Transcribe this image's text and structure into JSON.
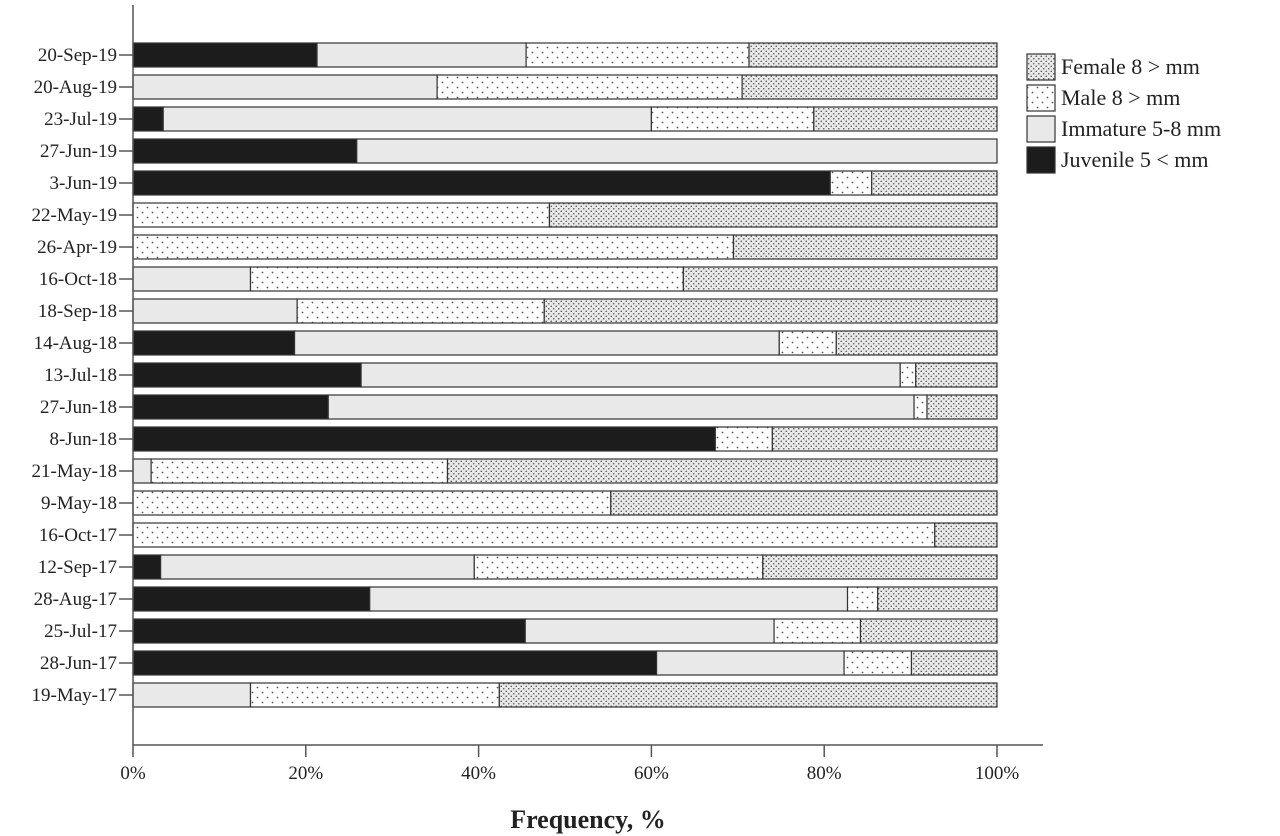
{
  "chart_data": {
    "type": "bar",
    "orientation": "horizontal",
    "stacked": true,
    "xlabel": "Frequency, %",
    "ylabel": "",
    "xlim": [
      0,
      100
    ],
    "x_ticks": [
      "0%",
      "20%",
      "40%",
      "60%",
      "80%",
      "100%"
    ],
    "legend_position": "top-right",
    "grid": false,
    "categories": [
      "20-Sep-19",
      "20-Aug-19",
      "23-Jul-19",
      "27-Jun-19",
      "3-Jun-19",
      "22-May-19",
      "26-Apr-19",
      "16-Oct-18",
      "18-Sep-18",
      "14-Aug-18",
      "13-Jul-18",
      "27-Jun-18",
      "8-Jun-18",
      "21-May-18",
      "9-May-18",
      "16-Oct-17",
      "12-Sep-17",
      "28-Aug-17",
      "25-Jul-17",
      "28-Jun-17",
      "19-May-17"
    ],
    "series": [
      {
        "name": "Juvenile 5 < mm",
        "pattern": "solid-dark",
        "values": [
          21.3,
          0,
          3.5,
          25.9,
          80.7,
          0,
          0,
          0,
          0,
          18.7,
          26.4,
          22.6,
          67.4,
          0,
          0,
          0,
          3.2,
          27.4,
          45.4,
          60.6,
          0
        ]
      },
      {
        "name": "Immature 5-8 mm",
        "pattern": "light-grey",
        "values": [
          24.2,
          35.2,
          56.5,
          74.1,
          0,
          0,
          0,
          13.6,
          19.0,
          56.1,
          62.4,
          67.8,
          0,
          2.1,
          0,
          0,
          36.3,
          55.3,
          28.8,
          21.7,
          13.6
        ]
      },
      {
        "name": "Male 8 > mm",
        "pattern": "sparse-dots",
        "values": [
          25.8,
          35.3,
          18.8,
          0,
          4.8,
          48.2,
          69.5,
          50.1,
          28.6,
          6.6,
          1.8,
          1.5,
          6.6,
          34.3,
          55.3,
          92.8,
          33.4,
          3.5,
          10.0,
          7.8,
          28.8
        ]
      },
      {
        "name": "Female 8 > mm",
        "pattern": "dense-dots",
        "values": [
          28.7,
          29.5,
          21.2,
          0,
          14.5,
          51.8,
          30.5,
          36.3,
          52.4,
          18.6,
          9.4,
          8.1,
          26.0,
          63.6,
          44.7,
          7.2,
          27.1,
          13.8,
          15.8,
          9.9,
          57.6
        ]
      }
    ],
    "legend_order": [
      "Female 8 > mm",
      "Male 8 > mm",
      "Immature 5-8 mm",
      "Juvenile 5 < mm"
    ]
  }
}
